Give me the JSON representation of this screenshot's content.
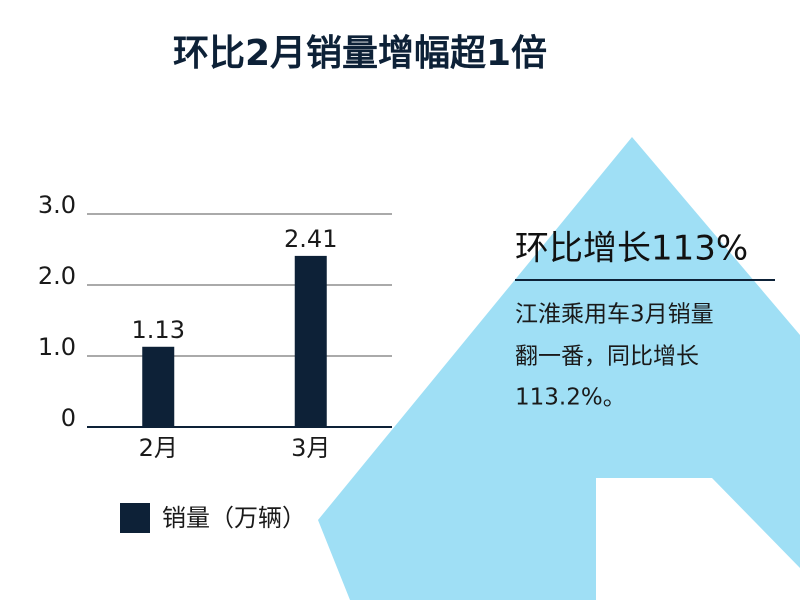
{
  "chart_data": {
    "type": "bar",
    "title": "环比2月销量增幅超1倍",
    "categories": [
      "2月",
      "3月"
    ],
    "series": [
      {
        "name": "销量（万辆）",
        "color": "#0d2137",
        "values": [
          1.13,
          2.41
        ]
      }
    ],
    "ylim": [
      0,
      3
    ],
    "yticks": [
      0,
      {
        "value": 1,
        "label": "1.0"
      },
      {
        "value": 2,
        "label": "2.0"
      },
      {
        "value": 3,
        "label": "3.0"
      }
    ],
    "grid": true,
    "annotation": {
      "heading": "环比增长113%",
      "lines": [
        "江淮乘用车3月销量",
        "翻一番，同比增长",
        "113.2%。"
      ]
    }
  }
}
